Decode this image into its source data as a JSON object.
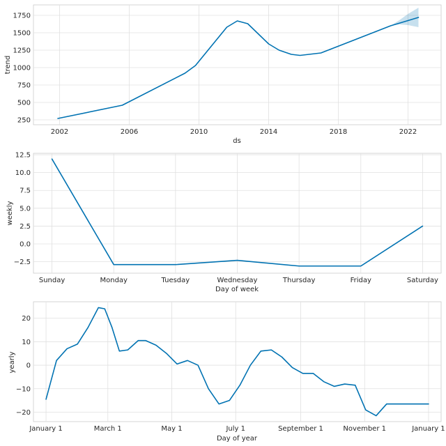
{
  "chart_data": [
    {
      "type": "line",
      "title": "",
      "xlabel": "ds",
      "ylabel": "trend",
      "xlim": [
        2000.5,
        2023.9
      ],
      "ylim": [
        180,
        1900
      ],
      "xticks": [
        2002,
        2006,
        2010,
        2014,
        2018,
        2022
      ],
      "xtick_labels": [
        "2002",
        "2006",
        "2010",
        "2014",
        "2018",
        "2022"
      ],
      "yticks": [
        250,
        500,
        750,
        1000,
        1250,
        1500,
        1750
      ],
      "ytick_labels": [
        "250",
        "500",
        "750",
        "1000",
        "1250",
        "1500",
        "1750"
      ],
      "series": [
        {
          "color": "#0072B2",
          "x": [
            2001.9,
            2005.6,
            2009.2,
            2009.8,
            2011.6,
            2012.2,
            2012.8,
            2014.0,
            2014.6,
            2015.3,
            2015.8,
            2017.0,
            2021.0,
            2022.6
          ],
          "y": [
            270,
            460,
            920,
            1030,
            1580,
            1670,
            1630,
            1340,
            1250,
            1190,
            1175,
            1210,
            1600,
            1720
          ]
        }
      ],
      "uncertainty": {
        "color": "#0072B2",
        "x": [
          2021.0,
          2021.5,
          2022.0,
          2022.6
        ],
        "lower": [
          1600,
          1620,
          1610,
          1580
        ],
        "upper": [
          1600,
          1680,
          1770,
          1860
        ]
      }
    },
    {
      "type": "line",
      "title": "",
      "xlabel": "Day of week",
      "ylabel": "weekly",
      "categories": [
        "Sunday",
        "Monday",
        "Tuesday",
        "Wednesday",
        "Thursday",
        "Friday",
        "Saturday"
      ],
      "ylim": [
        -4.1,
        12.7
      ],
      "yticks": [
        -2.5,
        0.0,
        2.5,
        5.0,
        7.5,
        10.0,
        12.5
      ],
      "ytick_labels": [
        "−2.5",
        "0.0",
        "2.5",
        "5.0",
        "7.5",
        "10.0",
        "12.5"
      ],
      "series": [
        {
          "color": "#0072B2",
          "values": [
            11.9,
            -2.9,
            -2.9,
            -2.3,
            -3.1,
            -3.1,
            2.5
          ]
        }
      ]
    },
    {
      "type": "line",
      "title": "",
      "xlabel": "Day of year",
      "ylabel": "yearly",
      "xlim": [
        -12,
        377
      ],
      "ylim": [
        -24,
        27
      ],
      "xticks": [
        0,
        59,
        120,
        181,
        243,
        304,
        365
      ],
      "xtick_labels": [
        "January 1",
        "March 1",
        "May 1",
        "July 1",
        "September 1",
        "November 1",
        "January 1"
      ],
      "yticks": [
        -20,
        -10,
        0,
        10,
        20
      ],
      "ytick_labels": [
        "−20",
        "−10",
        "0",
        "10",
        "20"
      ],
      "series": [
        {
          "color": "#0072B2",
          "x": [
            0,
            10,
            20,
            30,
            40,
            50,
            56,
            63,
            70,
            78,
            88,
            95,
            105,
            115,
            125,
            135,
            145,
            155,
            165,
            175,
            185,
            195,
            205,
            215,
            225,
            235,
            245,
            255,
            265,
            275,
            285,
            295,
            305,
            315,
            325,
            335,
            345,
            352,
            358,
            365
          ],
          "y": [
            -14.5,
            2,
            7,
            9,
            16,
            24.5,
            24,
            16,
            6,
            6.5,
            10.5,
            10.5,
            8.5,
            5,
            0.5,
            2,
            0,
            -10,
            -16.5,
            -15,
            -8.5,
            0,
            6,
            6.5,
            3.5,
            -1,
            -3.5,
            -3.5,
            -7,
            -9,
            -8,
            -8.5,
            -19,
            -21.5,
            -16.5,
            -16.5,
            -16.5,
            -16.5,
            -16.5,
            -16.5
          ]
        }
      ]
    }
  ]
}
